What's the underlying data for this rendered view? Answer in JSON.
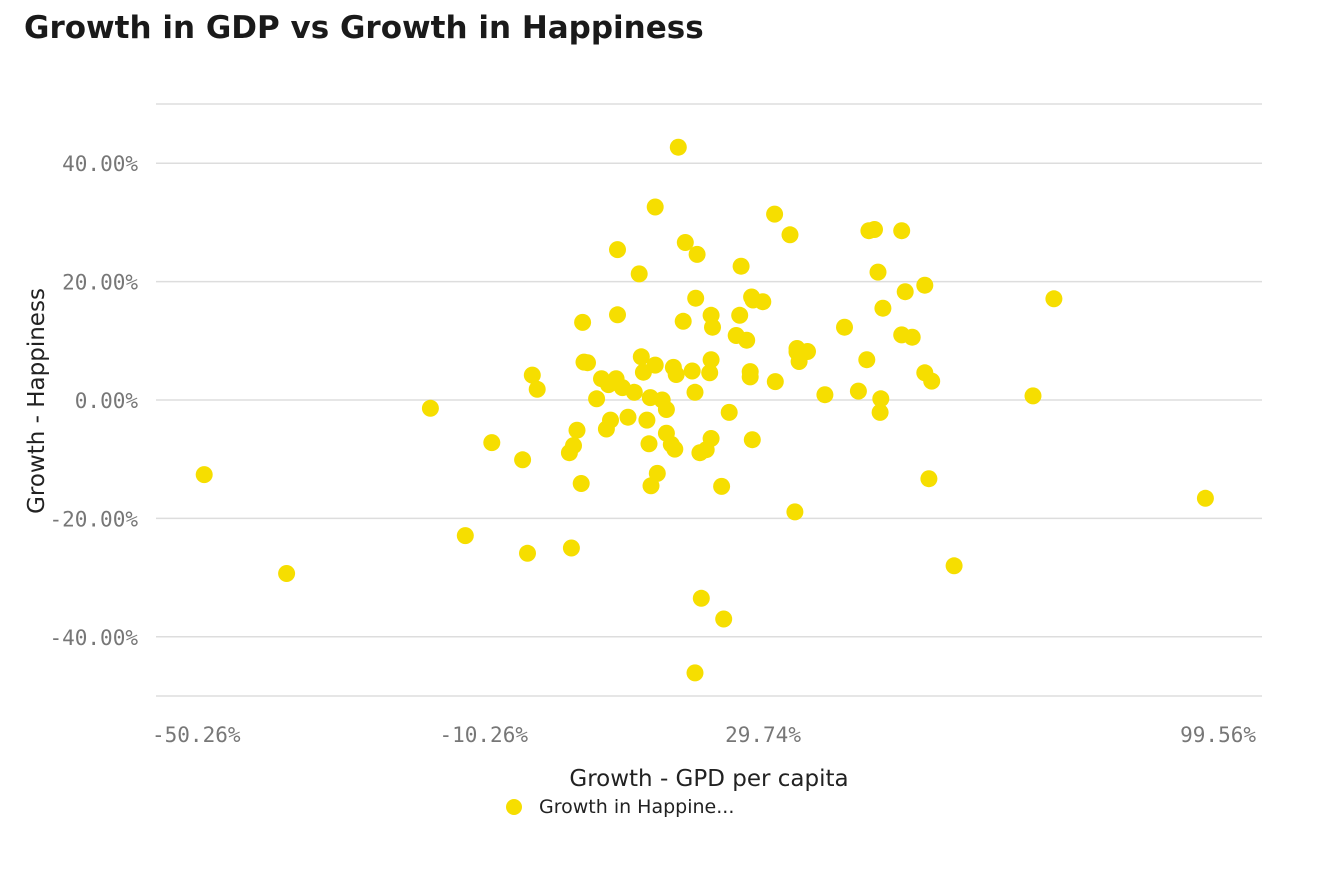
{
  "title": "Growth in GDP vs Growth in Happiness",
  "legend": {
    "label": "Growth in Happine..."
  },
  "colors": {
    "marker": "#f6de00",
    "grid": "#dddddd",
    "tick_text": "#777777",
    "axis_text": "#222222"
  },
  "chart_data": {
    "type": "scatter",
    "title": "Growth in GDP vs Growth in Happiness",
    "xlabel": "Growth - GPD per capita",
    "ylabel": "Growth - Happiness",
    "x_ticks": [
      -50.26,
      -10.26,
      29.74,
      99.56
    ],
    "x_tick_labels": [
      "-50.26%",
      "-10.26%",
      "29.74%",
      "99.56%"
    ],
    "y_ticks": [
      40,
      20,
      0,
      -20,
      -40
    ],
    "y_tick_labels": [
      "40.00%",
      "20.00%",
      "0.00%",
      "-20.00%",
      "-40.00%"
    ],
    "xlim": [
      -57.2,
      101.2
    ],
    "ylim": [
      -50,
      50
    ],
    "grid": true,
    "legend_position": "bottom",
    "series": [
      {
        "name": "Growth in Happine...",
        "points": [
          [
            -50.3,
            -12.6
          ],
          [
            -38.5,
            -29.3
          ],
          [
            -17.9,
            -1.4
          ],
          [
            -12.9,
            -22.9
          ],
          [
            -9.1,
            -7.2
          ],
          [
            -4.7,
            -10.1
          ],
          [
            -4.0,
            -25.9
          ],
          [
            -3.3,
            4.2
          ],
          [
            -2.6,
            1.8
          ],
          [
            2.0,
            -8.9
          ],
          [
            2.3,
            -25.0
          ],
          [
            2.6,
            -7.7
          ],
          [
            3.1,
            -5.1
          ],
          [
            3.9,
            13.1
          ],
          [
            3.7,
            -14.1
          ],
          [
            4.1,
            6.4
          ],
          [
            4.6,
            6.3
          ],
          [
            5.9,
            0.2
          ],
          [
            6.6,
            3.6
          ],
          [
            7.3,
            -4.9
          ],
          [
            7.6,
            2.6
          ],
          [
            7.9,
            -3.4
          ],
          [
            8.7,
            3.6
          ],
          [
            8.9,
            14.4
          ],
          [
            8.9,
            25.4
          ],
          [
            9.6,
            2.1
          ],
          [
            10.4,
            -2.9
          ],
          [
            11.3,
            1.3
          ],
          [
            12.0,
            21.3
          ],
          [
            12.3,
            7.3
          ],
          [
            12.6,
            4.7
          ],
          [
            13.1,
            -3.4
          ],
          [
            13.4,
            -7.4
          ],
          [
            13.6,
            0.4
          ],
          [
            13.7,
            -14.5
          ],
          [
            14.3,
            5.9
          ],
          [
            14.6,
            -12.4
          ],
          [
            14.3,
            32.6
          ],
          [
            15.3,
            0.0
          ],
          [
            15.9,
            -1.6
          ],
          [
            15.9,
            -5.6
          ],
          [
            16.6,
            -7.5
          ],
          [
            16.9,
            5.5
          ],
          [
            17.1,
            -8.3
          ],
          [
            17.3,
            4.3
          ],
          [
            17.6,
            42.7
          ],
          [
            18.3,
            13.3
          ],
          [
            18.6,
            26.6
          ],
          [
            19.6,
            4.9
          ],
          [
            20.0,
            1.3
          ],
          [
            20.1,
            17.2
          ],
          [
            20.3,
            24.6
          ],
          [
            20.9,
            -33.5
          ],
          [
            20.7,
            -8.9
          ],
          [
            21.6,
            -8.4
          ],
          [
            22.1,
            4.6
          ],
          [
            22.3,
            6.8
          ],
          [
            22.3,
            14.3
          ],
          [
            22.5,
            12.3
          ],
          [
            22.3,
            -6.5
          ],
          [
            23.8,
            -14.6
          ],
          [
            24.1,
            -37.0
          ],
          [
            24.9,
            -2.1
          ],
          [
            25.9,
            10.9
          ],
          [
            26.4,
            14.3
          ],
          [
            26.6,
            22.6
          ],
          [
            27.4,
            10.1
          ],
          [
            27.9,
            4.8
          ],
          [
            27.9,
            3.9
          ],
          [
            28.1,
            17.4
          ],
          [
            28.3,
            16.9
          ],
          [
            28.2,
            -6.7
          ],
          [
            29.7,
            16.6
          ],
          [
            31.4,
            31.4
          ],
          [
            31.5,
            3.1
          ],
          [
            33.6,
            27.9
          ],
          [
            34.6,
            8.7
          ],
          [
            34.6,
            8.1
          ],
          [
            34.9,
            6.5
          ],
          [
            34.3,
            -18.9
          ],
          [
            36.1,
            8.2
          ],
          [
            38.6,
            0.9
          ],
          [
            41.4,
            12.3
          ],
          [
            43.4,
            1.5
          ],
          [
            44.6,
            6.8
          ],
          [
            44.9,
            28.6
          ],
          [
            45.7,
            28.8
          ],
          [
            46.2,
            21.6
          ],
          [
            46.6,
            0.2
          ],
          [
            46.5,
            -2.1
          ],
          [
            46.9,
            15.5
          ],
          [
            49.6,
            28.6
          ],
          [
            49.6,
            11.0
          ],
          [
            50.1,
            18.3
          ],
          [
            51.1,
            10.6
          ],
          [
            52.9,
            19.4
          ],
          [
            52.9,
            4.6
          ],
          [
            53.5,
            -13.3
          ],
          [
            53.9,
            3.2
          ],
          [
            57.1,
            -28.0
          ],
          [
            68.4,
            0.7
          ],
          [
            71.4,
            17.1
          ],
          [
            93.1,
            -16.6
          ],
          [
            20.0,
            -46.1
          ]
        ]
      }
    ]
  }
}
